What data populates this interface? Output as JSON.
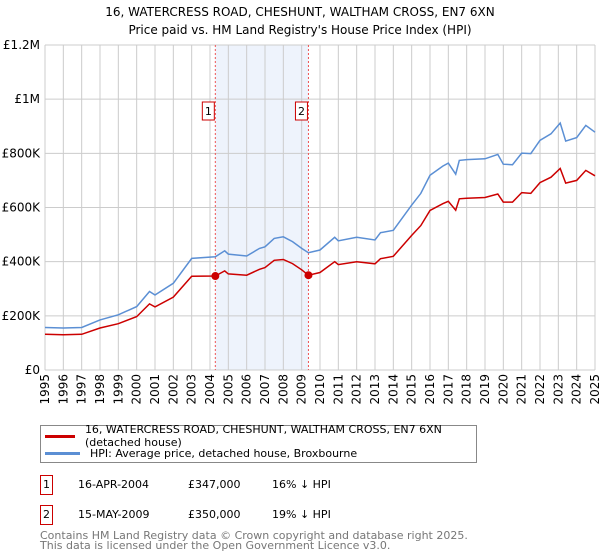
{
  "chart_data": {
    "type": "line",
    "title": "16, WATERCRESS ROAD, CHESHUNT, WALTHAM CROSS, EN7 6XN",
    "subtitle": "Price paid vs. HM Land Registry's House Price Index (HPI)",
    "xlim": [
      1995,
      2025
    ],
    "ylim": [
      0,
      1200000
    ],
    "y_ticks": [
      0,
      200000,
      400000,
      600000,
      800000,
      1000000,
      1200000
    ],
    "y_tick_labels": [
      "£0",
      "£200K",
      "£400K",
      "£600K",
      "£800K",
      "£1M",
      "£1.2M"
    ],
    "x_ticks": [
      "1995",
      "1996",
      "1997",
      "1998",
      "1999",
      "2000",
      "2001",
      "2002",
      "2003",
      "2004",
      "2005",
      "2006",
      "2007",
      "2008",
      "2009",
      "2010",
      "2011",
      "2012",
      "2013",
      "2014",
      "2015",
      "2016",
      "2017",
      "2018",
      "2019",
      "2020",
      "2021",
      "2022",
      "2023",
      "2024",
      "2025"
    ],
    "grid": true,
    "x": [
      1995,
      1996,
      1997,
      1998,
      1999,
      2000,
      2000.7,
      2001,
      2002,
      2003,
      2004.29,
      2004.8,
      2005,
      2006,
      2006.7,
      2007,
      2007.5,
      2008,
      2008.5,
      2009,
      2009.37,
      2010,
      2010.8,
      2011,
      2012,
      2013,
      2013.3,
      2014,
      2015,
      2015.5,
      2016,
      2016.7,
      2017,
      2017.4,
      2017.6,
      2018,
      2019,
      2019.7,
      2020,
      2020.5,
      2021,
      2021.5,
      2022,
      2022.6,
      2023.1,
      2023.4,
      2024,
      2024.5,
      2025
    ],
    "series": [
      {
        "name": "16, WATERCRESS ROAD, CHESHUNT, WALTHAM CROSS, EN7 6XN (detached house)",
        "color": "#cc0000",
        "values": [
          132000,
          130000,
          132000,
          155000,
          171000,
          197000,
          244000,
          233000,
          269000,
          346000,
          347000,
          366000,
          355000,
          350000,
          372000,
          378000,
          405000,
          408000,
          393000,
          370000,
          350000,
          360000,
          400000,
          389000,
          400000,
          392000,
          411000,
          420000,
          497000,
          533000,
          589000,
          614000,
          623000,
          590000,
          632000,
          634000,
          637000,
          650000,
          620000,
          620000,
          655000,
          652000,
          692000,
          712000,
          744000,
          690000,
          700000,
          737000,
          717000
        ]
      },
      {
        "name": "HPI: Average price, detached house, Broxbourne",
        "color": "#5b8fd4",
        "values": [
          157000,
          155000,
          157000,
          185000,
          204000,
          234000,
          290000,
          277000,
          320000,
          412000,
          418000,
          440000,
          428000,
          421000,
          449000,
          455000,
          486000,
          492000,
          474000,
          449000,
          433000,
          443000,
          490000,
          477000,
          490000,
          480000,
          507000,
          516000,
          609000,
          652000,
          719000,
          753000,
          764000,
          723000,
          774000,
          777000,
          780000,
          796000,
          760000,
          758000,
          801000,
          799000,
          848000,
          872000,
          912000,
          845000,
          858000,
          903000,
          878000
        ]
      }
    ],
    "sales": [
      {
        "label": "1",
        "x": 2004.29,
        "value": 347000,
        "date": "16-APR-2004",
        "price": "£347,000",
        "hpi": "16% ↓ HPI"
      },
      {
        "label": "2",
        "x": 2009.37,
        "value": 350000,
        "date": "15-MAY-2009",
        "price": "£350,000",
        "hpi": "19% ↓ HPI"
      }
    ],
    "shaded_range": [
      2004.29,
      2009.37
    ],
    "legend_position": "bottom"
  },
  "footer": {
    "line1": "Contains HM Land Registry data © Crown copyright and database right 2025.",
    "line2": "This data is licensed under the Open Government Licence v3.0."
  }
}
